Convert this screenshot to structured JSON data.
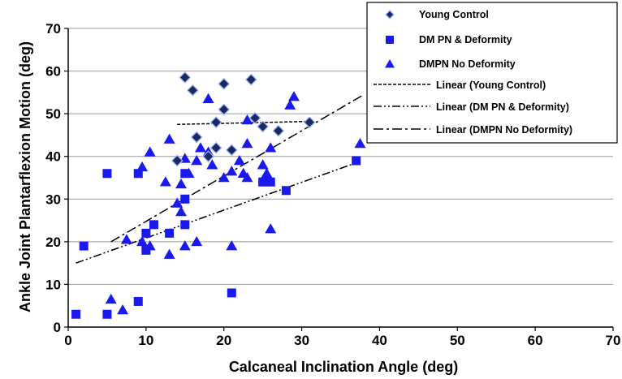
{
  "chart_data": {
    "type": "scatter",
    "title": "",
    "xlabel": "Calcaneal Inclination Angle (deg)",
    "ylabel": "Ankle Joint Plantarflexion Motion (deg)",
    "xlim": [
      0,
      70
    ],
    "ylim": [
      0,
      70
    ],
    "xticks": [
      0,
      10,
      20,
      30,
      40,
      50,
      60,
      70
    ],
    "yticks": [
      0,
      10,
      20,
      30,
      40,
      50,
      60,
      70
    ],
    "grid": "horizontal",
    "legend_position": "top-right",
    "colors": {
      "young_control": "#1a2a5c",
      "dm_pn": "#1a1aee",
      "dmpn_no": "#1a1aee",
      "trend": "#000000",
      "grid": "#999999"
    },
    "series": [
      {
        "name": "Young Control",
        "marker": "diamond",
        "points": [
          [
            15,
            58.5
          ],
          [
            20,
            57
          ],
          [
            23.5,
            58
          ],
          [
            16,
            55.5
          ],
          [
            20,
            51
          ],
          [
            24,
            49
          ],
          [
            25,
            47
          ],
          [
            27,
            46
          ],
          [
            19,
            48
          ],
          [
            31,
            48
          ],
          [
            16.5,
            44.5
          ],
          [
            21,
            41.5
          ],
          [
            19,
            42
          ],
          [
            14,
            39
          ],
          [
            18,
            40
          ]
        ]
      },
      {
        "name": "DM PN & Deformity",
        "marker": "square",
        "points": [
          [
            1,
            3
          ],
          [
            2,
            19
          ],
          [
            5,
            36
          ],
          [
            5,
            3
          ],
          [
            9,
            36
          ],
          [
            9,
            6
          ],
          [
            10,
            22
          ],
          [
            10,
            18
          ],
          [
            11,
            24
          ],
          [
            13,
            22
          ],
          [
            15,
            30
          ],
          [
            15,
            24
          ],
          [
            15,
            36
          ],
          [
            21,
            8
          ],
          [
            25,
            34
          ],
          [
            26,
            34
          ],
          [
            28,
            32
          ],
          [
            37,
            39
          ]
        ]
      },
      {
        "name": "DMPN No Deformity",
        "marker": "triangle",
        "points": [
          [
            5.5,
            6.5
          ],
          [
            7,
            4
          ],
          [
            7.5,
            20.5
          ],
          [
            9.5,
            20
          ],
          [
            9.5,
            37.5
          ],
          [
            10.5,
            41
          ],
          [
            10.5,
            19
          ],
          [
            13,
            44
          ],
          [
            13,
            17
          ],
          [
            14,
            29
          ],
          [
            14.5,
            27
          ],
          [
            14.5,
            33.5
          ],
          [
            15,
            39.5
          ],
          [
            15,
            19
          ],
          [
            15.5,
            36
          ],
          [
            16.5,
            20
          ],
          [
            16.5,
            39
          ],
          [
            17,
            42
          ],
          [
            18,
            53.5
          ],
          [
            18,
            41
          ],
          [
            18.5,
            38
          ],
          [
            12.5,
            34
          ],
          [
            20,
            35
          ],
          [
            21,
            36.5
          ],
          [
            21,
            19
          ],
          [
            22,
            39
          ],
          [
            22.5,
            36
          ],
          [
            23,
            35
          ],
          [
            23,
            43
          ],
          [
            23,
            48.5
          ],
          [
            25,
            38
          ],
          [
            25.5,
            36
          ],
          [
            26,
            42
          ],
          [
            26,
            23
          ],
          [
            28.5,
            52
          ],
          [
            29,
            54
          ],
          [
            37.5,
            43
          ]
        ]
      }
    ],
    "trendlines": [
      {
        "name": "Linear (Young Control)",
        "style": "dashed",
        "x": [
          14,
          31
        ],
        "y": [
          47.5,
          48.2
        ]
      },
      {
        "name": "Linear (DM PN & Deformity)",
        "style": "dash-dot-dot",
        "x": [
          1,
          37
        ],
        "y": [
          15,
          38.5
        ]
      },
      {
        "name": "Linear (DMPN No Deformity)",
        "style": "dash-dot",
        "x": [
          5.5,
          38
        ],
        "y": [
          20,
          54.5
        ]
      }
    ]
  }
}
